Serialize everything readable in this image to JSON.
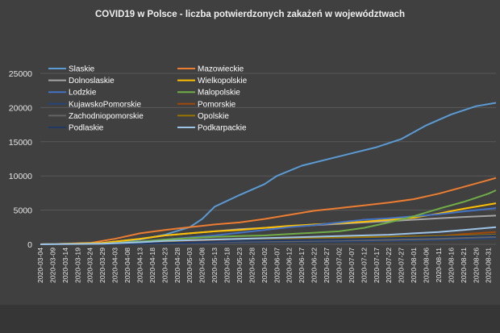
{
  "chart_data": {
    "type": "line",
    "title": "COVID19  w Polsce  - liczba  potwierdzonych  zakażeń  w  województwach",
    "xlabel": "",
    "ylabel": "",
    "ylim": [
      0,
      25000
    ],
    "yticks": [
      0,
      5000,
      10000,
      15000,
      20000,
      25000
    ],
    "grid": true,
    "legend_position": "top-left",
    "x_range": [
      "2020-03-04",
      "2020-09-03"
    ],
    "x_tick_labels": [
      "2020-03-04",
      "2020-03-09",
      "2020-03-14",
      "2020-03-19",
      "2020-03-24",
      "2020-03-29",
      "2020-04-03",
      "2020-04-08",
      "2020-04-13",
      "2020-04-18",
      "2020-04-23",
      "2020-04-28",
      "2020-05-03",
      "2020-05-08",
      "2020-05-13",
      "2020-05-18",
      "2020-05-23",
      "2020-05-28",
      "2020-06-02",
      "2020-06-07",
      "2020-06-12",
      "2020-06-17",
      "2020-06-22",
      "2020-06-27",
      "2020-07-02",
      "2020-07-07",
      "2020-07-12",
      "2020-07-17",
      "2020-07-22",
      "2020-07-27",
      "2020-08-01",
      "2020-08-06",
      "2020-08-11",
      "2020-08-16",
      "2020-08-21",
      "2020-08-26",
      "2020-08-31"
    ],
    "series": [
      {
        "name": "Slaskie",
        "color": "#5b9bd5",
        "points": [
          [
            "2020-03-04",
            0
          ],
          [
            "2020-03-24",
            100
          ],
          [
            "2020-04-03",
            300
          ],
          [
            "2020-04-13",
            700
          ],
          [
            "2020-04-23",
            1400
          ],
          [
            "2020-05-03",
            2500
          ],
          [
            "2020-05-08",
            3700
          ],
          [
            "2020-05-13",
            5500
          ],
          [
            "2020-05-23",
            7200
          ],
          [
            "2020-06-02",
            8800
          ],
          [
            "2020-06-07",
            10000
          ],
          [
            "2020-06-17",
            11500
          ],
          [
            "2020-06-27",
            12400
          ],
          [
            "2020-07-07",
            13300
          ],
          [
            "2020-07-17",
            14200
          ],
          [
            "2020-07-27",
            15400
          ],
          [
            "2020-08-06",
            17400
          ],
          [
            "2020-08-16",
            19000
          ],
          [
            "2020-08-26",
            20200
          ],
          [
            "2020-09-03",
            20700
          ]
        ]
      },
      {
        "name": "Mazowieckie",
        "color": "#ed7d31",
        "points": [
          [
            "2020-03-04",
            0
          ],
          [
            "2020-03-24",
            200
          ],
          [
            "2020-04-03",
            800
          ],
          [
            "2020-04-13",
            1600
          ],
          [
            "2020-04-23",
            2100
          ],
          [
            "2020-05-03",
            2500
          ],
          [
            "2020-05-13",
            2900
          ],
          [
            "2020-05-23",
            3200
          ],
          [
            "2020-06-02",
            3700
          ],
          [
            "2020-06-12",
            4300
          ],
          [
            "2020-06-22",
            4900
          ],
          [
            "2020-07-02",
            5300
          ],
          [
            "2020-07-12",
            5700
          ],
          [
            "2020-07-22",
            6100
          ],
          [
            "2020-08-01",
            6600
          ],
          [
            "2020-08-11",
            7400
          ],
          [
            "2020-08-21",
            8400
          ],
          [
            "2020-08-31",
            9400
          ],
          [
            "2020-09-03",
            9700
          ]
        ]
      },
      {
        "name": "Dolnoslaskie",
        "color": "#a5a5a5",
        "points": [
          [
            "2020-03-04",
            0
          ],
          [
            "2020-03-29",
            200
          ],
          [
            "2020-04-13",
            800
          ],
          [
            "2020-04-23",
            1300
          ],
          [
            "2020-05-03",
            1600
          ],
          [
            "2020-05-13",
            1900
          ],
          [
            "2020-05-23",
            2200
          ],
          [
            "2020-06-02",
            2400
          ],
          [
            "2020-06-12",
            2600
          ],
          [
            "2020-06-22",
            2800
          ],
          [
            "2020-07-02",
            3000
          ],
          [
            "2020-07-12",
            3200
          ],
          [
            "2020-07-22",
            3400
          ],
          [
            "2020-08-01",
            3600
          ],
          [
            "2020-08-11",
            3800
          ],
          [
            "2020-08-21",
            4000
          ],
          [
            "2020-09-03",
            4200
          ]
        ]
      },
      {
        "name": "Wielkopolskie",
        "color": "#ffc000",
        "points": [
          [
            "2020-03-04",
            0
          ],
          [
            "2020-03-29",
            200
          ],
          [
            "2020-04-13",
            800
          ],
          [
            "2020-04-23",
            1300
          ],
          [
            "2020-05-03",
            1600
          ],
          [
            "2020-05-13",
            1900
          ],
          [
            "2020-05-23",
            2100
          ],
          [
            "2020-06-02",
            2400
          ],
          [
            "2020-06-12",
            2700
          ],
          [
            "2020-06-22",
            2900
          ],
          [
            "2020-07-02",
            3100
          ],
          [
            "2020-07-12",
            3300
          ],
          [
            "2020-07-22",
            3600
          ],
          [
            "2020-08-01",
            3900
          ],
          [
            "2020-08-11",
            4500
          ],
          [
            "2020-08-21",
            5200
          ],
          [
            "2020-09-03",
            6000
          ]
        ]
      },
      {
        "name": "Lodzkie",
        "color": "#4472c4",
        "points": [
          [
            "2020-03-04",
            0
          ],
          [
            "2020-03-29",
            100
          ],
          [
            "2020-04-13",
            400
          ],
          [
            "2020-04-23",
            700
          ],
          [
            "2020-05-03",
            1000
          ],
          [
            "2020-05-13",
            1300
          ],
          [
            "2020-05-23",
            1700
          ],
          [
            "2020-06-02",
            2100
          ],
          [
            "2020-06-12",
            2500
          ],
          [
            "2020-06-22",
            2800
          ],
          [
            "2020-07-02",
            3200
          ],
          [
            "2020-07-12",
            3600
          ],
          [
            "2020-07-22",
            3800
          ],
          [
            "2020-08-01",
            4100
          ],
          [
            "2020-08-11",
            4400
          ],
          [
            "2020-08-21",
            4800
          ],
          [
            "2020-09-03",
            5300
          ]
        ]
      },
      {
        "name": "Malopolskie",
        "color": "#70ad47",
        "points": [
          [
            "2020-03-04",
            0
          ],
          [
            "2020-03-29",
            100
          ],
          [
            "2020-04-13",
            400
          ],
          [
            "2020-04-23",
            700
          ],
          [
            "2020-05-03",
            900
          ],
          [
            "2020-05-13",
            1100
          ],
          [
            "2020-05-23",
            1200
          ],
          [
            "2020-06-02",
            1300
          ],
          [
            "2020-06-12",
            1500
          ],
          [
            "2020-06-22",
            1700
          ],
          [
            "2020-07-02",
            1900
          ],
          [
            "2020-07-12",
            2400
          ],
          [
            "2020-07-22",
            3200
          ],
          [
            "2020-08-01",
            4100
          ],
          [
            "2020-08-11",
            5200
          ],
          [
            "2020-08-21",
            6200
          ],
          [
            "2020-08-31",
            7400
          ],
          [
            "2020-09-03",
            7900
          ]
        ]
      },
      {
        "name": "KujawskoPomorskie",
        "color": "#264478",
        "points": [
          [
            "2020-03-04",
            0
          ],
          [
            "2020-03-29",
            30
          ],
          [
            "2020-04-13",
            100
          ],
          [
            "2020-04-23",
            150
          ],
          [
            "2020-05-03",
            200
          ],
          [
            "2020-05-23",
            300
          ],
          [
            "2020-06-12",
            350
          ],
          [
            "2020-07-02",
            400
          ],
          [
            "2020-07-22",
            500
          ],
          [
            "2020-08-11",
            650
          ],
          [
            "2020-09-03",
            900
          ]
        ]
      },
      {
        "name": "Pomorskie",
        "color": "#9e480e",
        "points": [
          [
            "2020-03-04",
            0
          ],
          [
            "2020-03-29",
            60
          ],
          [
            "2020-04-13",
            200
          ],
          [
            "2020-04-23",
            300
          ],
          [
            "2020-05-03",
            400
          ],
          [
            "2020-05-23",
            500
          ],
          [
            "2020-06-12",
            600
          ],
          [
            "2020-07-02",
            700
          ],
          [
            "2020-07-22",
            900
          ],
          [
            "2020-08-11",
            1200
          ],
          [
            "2020-08-21",
            1500
          ],
          [
            "2020-09-03",
            1800
          ]
        ]
      },
      {
        "name": "Zachodniopomorskie",
        "color": "#636363",
        "points": [
          [
            "2020-03-04",
            0
          ],
          [
            "2020-03-29",
            40
          ],
          [
            "2020-04-13",
            150
          ],
          [
            "2020-04-23",
            250
          ],
          [
            "2020-05-03",
            300
          ],
          [
            "2020-05-23",
            400
          ],
          [
            "2020-06-12",
            450
          ],
          [
            "2020-07-02",
            550
          ],
          [
            "2020-07-22",
            650
          ],
          [
            "2020-08-11",
            800
          ],
          [
            "2020-09-03",
            1100
          ]
        ]
      },
      {
        "name": "Opolskie",
        "color": "#997300",
        "points": [
          [
            "2020-03-04",
            0
          ],
          [
            "2020-03-29",
            50
          ],
          [
            "2020-04-13",
            200
          ],
          [
            "2020-04-23",
            400
          ],
          [
            "2020-05-03",
            600
          ],
          [
            "2020-05-23",
            800
          ],
          [
            "2020-06-12",
            900
          ],
          [
            "2020-07-02",
            1000
          ],
          [
            "2020-07-22",
            1100
          ],
          [
            "2020-08-11",
            1200
          ],
          [
            "2020-09-03",
            1400
          ]
        ]
      },
      {
        "name": "Podlaskie",
        "color": "#203864",
        "points": [
          [
            "2020-03-04",
            0
          ],
          [
            "2020-03-29",
            30
          ],
          [
            "2020-04-13",
            120
          ],
          [
            "2020-04-23",
            200
          ],
          [
            "2020-05-03",
            300
          ],
          [
            "2020-05-23",
            500
          ],
          [
            "2020-06-12",
            600
          ],
          [
            "2020-07-02",
            700
          ],
          [
            "2020-07-22",
            900
          ],
          [
            "2020-08-11",
            1100
          ],
          [
            "2020-09-03",
            1300
          ]
        ]
      },
      {
        "name": "Podkarpackie",
        "color": "#9dc3e6",
        "points": [
          [
            "2020-03-04",
            0
          ],
          [
            "2020-03-29",
            100
          ],
          [
            "2020-04-13",
            300
          ],
          [
            "2020-04-23",
            500
          ],
          [
            "2020-05-03",
            600
          ],
          [
            "2020-05-23",
            800
          ],
          [
            "2020-06-12",
            1000
          ],
          [
            "2020-07-02",
            1200
          ],
          [
            "2020-07-22",
            1400
          ],
          [
            "2020-08-11",
            1800
          ],
          [
            "2020-08-21",
            2100
          ],
          [
            "2020-09-03",
            2500
          ]
        ]
      }
    ]
  }
}
